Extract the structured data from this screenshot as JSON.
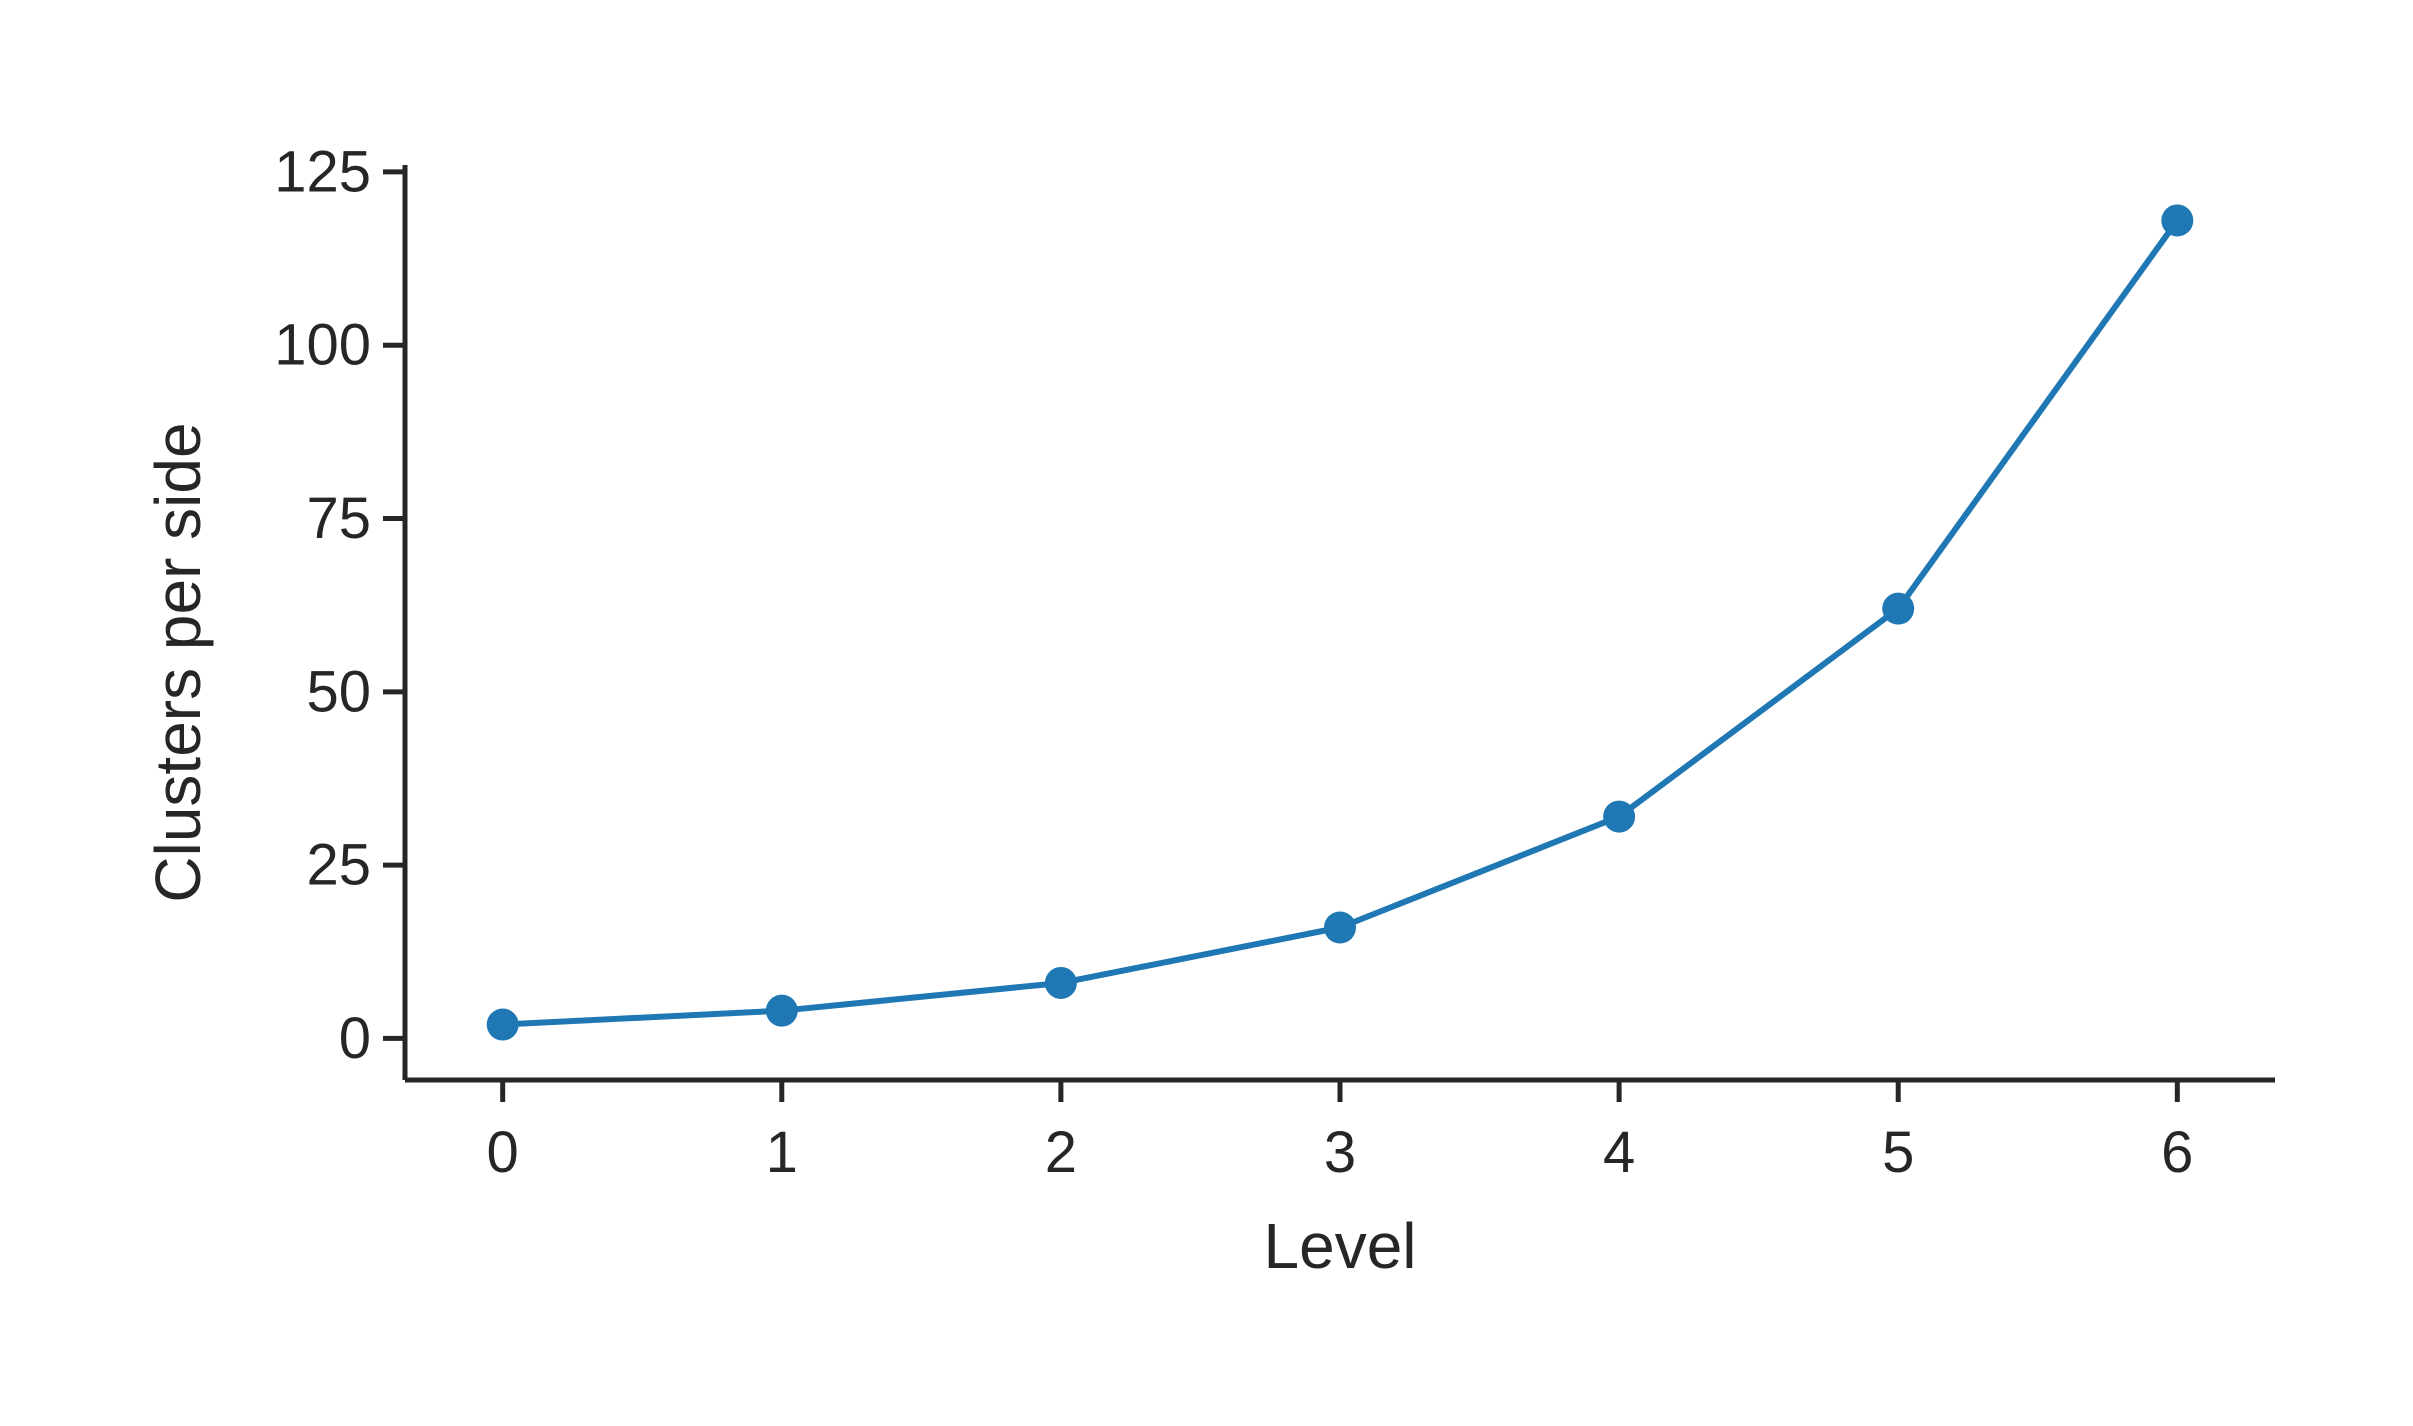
{
  "chart_data": {
    "type": "line",
    "title": "",
    "xlabel": "Level",
    "ylabel": "Clusters per side",
    "x": [
      0,
      1,
      2,
      3,
      4,
      5,
      6
    ],
    "series": [
      {
        "values": [
          2,
          4,
          8,
          16,
          32,
          62,
          118
        ],
        "color": "#1f77b4",
        "marker": "circle"
      }
    ],
    "xlim": [
      -0.35,
      6.35
    ],
    "ylim": [
      -6,
      126
    ],
    "xticks": [
      "0",
      "1",
      "2",
      "3",
      "4",
      "5",
      "6"
    ],
    "yticks": [
      "0",
      "25",
      "50",
      "75",
      "100",
      "125"
    ],
    "grid": false,
    "legend": "none"
  }
}
